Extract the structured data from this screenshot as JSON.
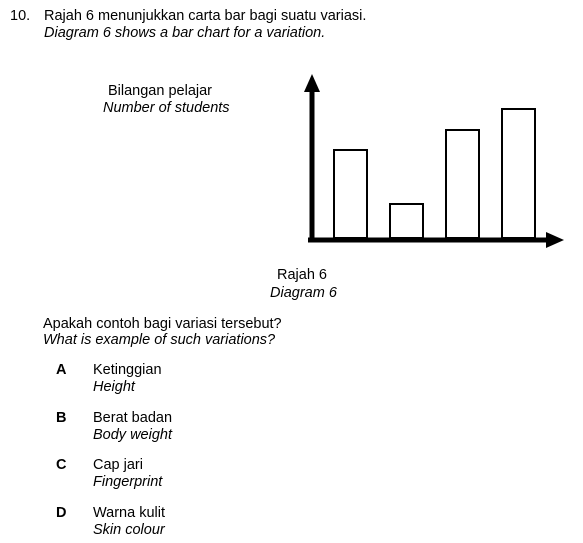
{
  "question": {
    "number": "10.",
    "stem_ms": "Rajah 6 menunjukkan carta bar bagi suatu variasi.",
    "stem_en": "Diagram 6 shows a bar chart for a variation."
  },
  "chart_data": {
    "type": "bar",
    "title": "",
    "ylabel_ms": "Bilangan pelajar",
    "ylabel_en": "Number of students",
    "xlabel": "",
    "categories": [
      "",
      "",
      "",
      ""
    ],
    "values": [
      88,
      34,
      108,
      129
    ],
    "ylim": [
      0,
      160
    ],
    "grid": false,
    "colors": {
      "bar_fill": "#ffffff",
      "bar_stroke": "#000000",
      "axis": "#000000"
    }
  },
  "caption": {
    "ms": "Rajah 6",
    "en": "Diagram 6"
  },
  "prompt": {
    "ms": "Apakah contoh bagi variasi tersebut?",
    "en": "What is example of such variations?"
  },
  "options": [
    {
      "letter": "A",
      "ms": "Ketinggian",
      "en": "Height"
    },
    {
      "letter": "B",
      "ms": "Berat badan",
      "en": "Body weight"
    },
    {
      "letter": "C",
      "ms": "Cap jari",
      "en": "Fingerprint"
    },
    {
      "letter": "D",
      "ms": "Warna kulit",
      "en": "Skin colour"
    }
  ]
}
